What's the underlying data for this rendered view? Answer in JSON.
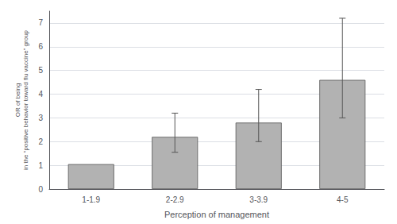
{
  "chart_data": {
    "type": "bar",
    "categories": [
      "1-1.9",
      "2-2.9",
      "3-3.9",
      "4-5"
    ],
    "values": [
      1.05,
      2.2,
      2.8,
      4.6
    ],
    "ci_lower": [
      1.05,
      1.55,
      2.0,
      3.0
    ],
    "ci_upper": [
      1.05,
      3.2,
      4.2,
      7.2
    ],
    "color": "#b2b2b2",
    "xlabel": "Perception of management",
    "ylabel": "OR of being\nin the “positive behavior toward flu vaccine” group",
    "ylim": [
      0,
      7.5
    ],
    "yticks": [
      0,
      1,
      2,
      3,
      4,
      5,
      6,
      7
    ],
    "grid": true
  }
}
